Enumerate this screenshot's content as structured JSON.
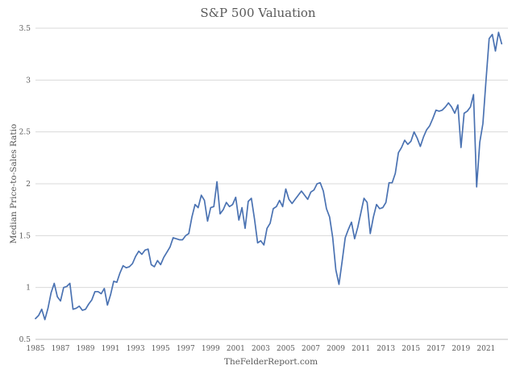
{
  "chart_data": {
    "type": "line",
    "title": "S&P 500 Valuation",
    "xlabel": "TheFelderReport.com",
    "ylabel": "Median Price-to-Sales Ratio",
    "ylim": [
      0.5,
      3.5
    ],
    "xlim": [
      1985,
      2022.75
    ],
    "y_ticks": [
      "0.5",
      "1",
      "1.5",
      "2",
      "2.5",
      "3",
      "3.5"
    ],
    "x_ticks": [
      "1985",
      "1987",
      "1989",
      "1991",
      "1993",
      "1995",
      "1997",
      "1999",
      "2001",
      "2003",
      "2005",
      "2007",
      "2009",
      "2011",
      "2013",
      "2015",
      "2017",
      "2019",
      "2021"
    ],
    "grid": true,
    "series": [
      {
        "name": "Median Price-to-Sales Ratio",
        "color": "#4a72b2",
        "points": [
          [
            1985.0,
            0.7
          ],
          [
            1985.25,
            0.73
          ],
          [
            1985.5,
            0.79
          ],
          [
            1985.75,
            0.69
          ],
          [
            1986.0,
            0.8
          ],
          [
            1986.25,
            0.95
          ],
          [
            1986.5,
            1.04
          ],
          [
            1986.75,
            0.91
          ],
          [
            1987.0,
            0.87
          ],
          [
            1987.25,
            1.0
          ],
          [
            1987.5,
            1.01
          ],
          [
            1987.75,
            1.04
          ],
          [
            1988.0,
            0.79
          ],
          [
            1988.25,
            0.8
          ],
          [
            1988.5,
            0.82
          ],
          [
            1988.75,
            0.78
          ],
          [
            1989.0,
            0.79
          ],
          [
            1989.25,
            0.84
          ],
          [
            1989.5,
            0.88
          ],
          [
            1989.75,
            0.96
          ],
          [
            1990.0,
            0.96
          ],
          [
            1990.25,
            0.94
          ],
          [
            1990.5,
            0.99
          ],
          [
            1990.75,
            0.83
          ],
          [
            1991.0,
            0.93
          ],
          [
            1991.25,
            1.06
          ],
          [
            1991.5,
            1.05
          ],
          [
            1991.75,
            1.14
          ],
          [
            1992.0,
            1.21
          ],
          [
            1992.25,
            1.19
          ],
          [
            1992.5,
            1.2
          ],
          [
            1992.75,
            1.23
          ],
          [
            1993.0,
            1.3
          ],
          [
            1993.25,
            1.35
          ],
          [
            1993.5,
            1.32
          ],
          [
            1993.75,
            1.36
          ],
          [
            1994.0,
            1.37
          ],
          [
            1994.25,
            1.22
          ],
          [
            1994.5,
            1.2
          ],
          [
            1994.75,
            1.26
          ],
          [
            1995.0,
            1.22
          ],
          [
            1995.25,
            1.29
          ],
          [
            1995.5,
            1.34
          ],
          [
            1995.75,
            1.39
          ],
          [
            1996.0,
            1.48
          ],
          [
            1996.25,
            1.47
          ],
          [
            1996.5,
            1.46
          ],
          [
            1996.75,
            1.46
          ],
          [
            1997.0,
            1.5
          ],
          [
            1997.25,
            1.52
          ],
          [
            1997.5,
            1.68
          ],
          [
            1997.75,
            1.8
          ],
          [
            1998.0,
            1.77
          ],
          [
            1998.25,
            1.89
          ],
          [
            1998.5,
            1.84
          ],
          [
            1998.75,
            1.64
          ],
          [
            1999.0,
            1.77
          ],
          [
            1999.25,
            1.78
          ],
          [
            1999.5,
            2.02
          ],
          [
            1999.75,
            1.71
          ],
          [
            2000.0,
            1.75
          ],
          [
            2000.25,
            1.82
          ],
          [
            2000.5,
            1.78
          ],
          [
            2000.75,
            1.8
          ],
          [
            2001.0,
            1.87
          ],
          [
            2001.25,
            1.65
          ],
          [
            2001.5,
            1.77
          ],
          [
            2001.75,
            1.57
          ],
          [
            2002.0,
            1.83
          ],
          [
            2002.25,
            1.86
          ],
          [
            2002.5,
            1.66
          ],
          [
            2002.75,
            1.43
          ],
          [
            2003.0,
            1.45
          ],
          [
            2003.25,
            1.41
          ],
          [
            2003.5,
            1.57
          ],
          [
            2003.75,
            1.62
          ],
          [
            2004.0,
            1.76
          ],
          [
            2004.25,
            1.78
          ],
          [
            2004.5,
            1.84
          ],
          [
            2004.75,
            1.78
          ],
          [
            2005.0,
            1.95
          ],
          [
            2005.25,
            1.85
          ],
          [
            2005.5,
            1.81
          ],
          [
            2005.75,
            1.85
          ],
          [
            2006.0,
            1.89
          ],
          [
            2006.25,
            1.93
          ],
          [
            2006.5,
            1.89
          ],
          [
            2006.75,
            1.85
          ],
          [
            2007.0,
            1.92
          ],
          [
            2007.25,
            1.94
          ],
          [
            2007.5,
            2.0
          ],
          [
            2007.75,
            2.01
          ],
          [
            2008.0,
            1.93
          ],
          [
            2008.25,
            1.76
          ],
          [
            2008.5,
            1.68
          ],
          [
            2008.75,
            1.48
          ],
          [
            2009.0,
            1.17
          ],
          [
            2009.25,
            1.03
          ],
          [
            2009.5,
            1.25
          ],
          [
            2009.75,
            1.48
          ],
          [
            2010.0,
            1.56
          ],
          [
            2010.25,
            1.63
          ],
          [
            2010.5,
            1.47
          ],
          [
            2010.75,
            1.58
          ],
          [
            2011.0,
            1.72
          ],
          [
            2011.25,
            1.86
          ],
          [
            2011.5,
            1.82
          ],
          [
            2011.75,
            1.52
          ],
          [
            2012.0,
            1.68
          ],
          [
            2012.25,
            1.8
          ],
          [
            2012.5,
            1.76
          ],
          [
            2012.75,
            1.77
          ],
          [
            2013.0,
            1.82
          ],
          [
            2013.25,
            2.01
          ],
          [
            2013.5,
            2.01
          ],
          [
            2013.75,
            2.1
          ],
          [
            2014.0,
            2.3
          ],
          [
            2014.25,
            2.35
          ],
          [
            2014.5,
            2.42
          ],
          [
            2014.75,
            2.38
          ],
          [
            2015.0,
            2.41
          ],
          [
            2015.25,
            2.5
          ],
          [
            2015.5,
            2.44
          ],
          [
            2015.75,
            2.36
          ],
          [
            2016.0,
            2.45
          ],
          [
            2016.25,
            2.52
          ],
          [
            2016.5,
            2.56
          ],
          [
            2016.75,
            2.63
          ],
          [
            2017.0,
            2.71
          ],
          [
            2017.25,
            2.7
          ],
          [
            2017.5,
            2.71
          ],
          [
            2017.75,
            2.74
          ],
          [
            2018.0,
            2.78
          ],
          [
            2018.25,
            2.74
          ],
          [
            2018.5,
            2.68
          ],
          [
            2018.75,
            2.76
          ],
          [
            2019.0,
            2.35
          ],
          [
            2019.25,
            2.68
          ],
          [
            2019.5,
            2.7
          ],
          [
            2019.75,
            2.74
          ],
          [
            2020.0,
            2.86
          ],
          [
            2020.25,
            1.97
          ],
          [
            2020.5,
            2.4
          ],
          [
            2020.75,
            2.58
          ],
          [
            2021.0,
            3.0
          ],
          [
            2021.25,
            3.4
          ],
          [
            2021.5,
            3.44
          ],
          [
            2021.75,
            3.28
          ],
          [
            2022.0,
            3.46
          ],
          [
            2022.25,
            3.35
          ]
        ]
      }
    ]
  }
}
